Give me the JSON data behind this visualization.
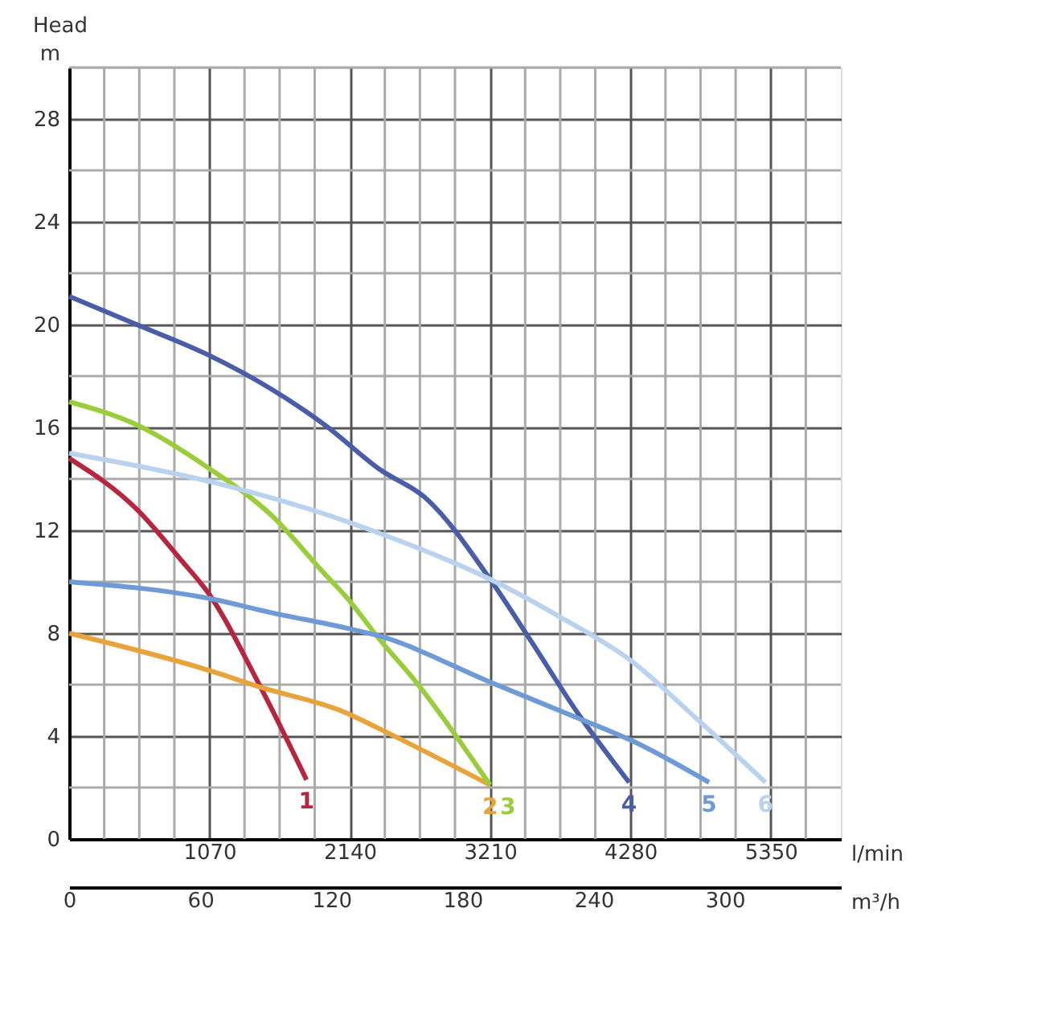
{
  "chart_data": {
    "type": "line",
    "title": "Head",
    "ylabel": "m",
    "xlabel": "l/min",
    "x2label": "m³/h",
    "xlim": [
      0,
      5885
    ],
    "ylim": [
      0,
      30
    ],
    "xticks": [
      {
        "value": 267.5,
        "label": null
      },
      {
        "value": 535,
        "label": null
      },
      {
        "value": 802.5,
        "label": null
      },
      1070,
      {
        "value": 1337.5,
        "label": null
      },
      {
        "value": 1605,
        "label": null
      },
      {
        "value": 1872.5,
        "label": null
      },
      2140,
      {
        "value": 2407.5,
        "label": null
      },
      {
        "value": 2675,
        "label": null
      },
      {
        "value": 2942.5,
        "label": null
      },
      3210,
      {
        "value": 3477.5,
        "label": null
      },
      {
        "value": 3745,
        "label": null
      },
      {
        "value": 4012.5,
        "label": null
      },
      4280,
      {
        "value": 4547.5,
        "label": null
      },
      {
        "value": 4815,
        "label": null
      },
      {
        "value": 5082.5,
        "label": null
      },
      5350,
      {
        "value": 5617.5,
        "label": null
      }
    ],
    "yticks": [
      0,
      {
        "value": 2,
        "label": null
      },
      4,
      {
        "value": 6,
        "label": null
      },
      8,
      {
        "value": 10,
        "label": null
      },
      12,
      {
        "value": 14,
        "label": null
      },
      16,
      {
        "value": 18,
        "label": null
      },
      20,
      {
        "value": 22,
        "label": null
      },
      24,
      {
        "value": 26,
        "label": null
      },
      28,
      {
        "value": 30,
        "label": null
      }
    ],
    "x2lim": [
      0,
      353.1
    ],
    "x2ticks": [
      0,
      60,
      120,
      180,
      240,
      300
    ],
    "grid": true,
    "legend": false,
    "marker": "none",
    "line_style": "solid",
    "series": [
      {
        "name": "1",
        "color": "#b5263f",
        "x": [
          0,
          520,
          845,
          1070,
          1460,
          1810
        ],
        "values": [
          14.8,
          12.8,
          10.9,
          9.5,
          5.9,
          2.3
        ]
      },
      {
        "name": "2",
        "color": "#e8a33a",
        "x": [
          0,
          1070,
          1460,
          2115,
          2360,
          3210
        ],
        "values": [
          8,
          6.55,
          5.9,
          4.9,
          4.3,
          2.1
        ]
      },
      {
        "name": "3",
        "color": "#9acd3c",
        "x": [
          0,
          517,
          1070,
          1540,
          1950,
          2115,
          2361,
          2646,
          3210
        ],
        "values": [
          17,
          16.1,
          14.4,
          12.6,
          10.3,
          9.4,
          7.8,
          6.1,
          2.1
        ]
      },
      {
        "name": "4",
        "color": "#4a5ea8",
        "x": [
          0,
          517,
          1070,
          1540,
          1950,
          2361,
          2731,
          3210,
          3509,
          3878,
          4270
        ],
        "values": [
          21.1,
          20.0,
          18.8,
          17.5,
          16.1,
          14.4,
          13.2,
          10.1,
          7.8,
          4.9,
          2.2
        ]
      },
      {
        "name": "5",
        "color": "#6e9ad6",
        "x": [
          0,
          1070,
          1540,
          2115,
          2361,
          3210,
          3878,
          4280,
          4880
        ],
        "values": [
          10,
          9.35,
          8.8,
          8.2,
          7.9,
          6.1,
          4.7,
          3.85,
          2.2
        ]
      },
      {
        "name": "6",
        "color": "#b9d2ee",
        "x": [
          0,
          1070,
          2115,
          2361,
          3210,
          3755,
          4280,
          4780,
          5310
        ],
        "values": [
          15,
          13.9,
          12.35,
          11.9,
          10.1,
          8.6,
          6.95,
          4.7,
          2.2
        ]
      }
    ]
  }
}
